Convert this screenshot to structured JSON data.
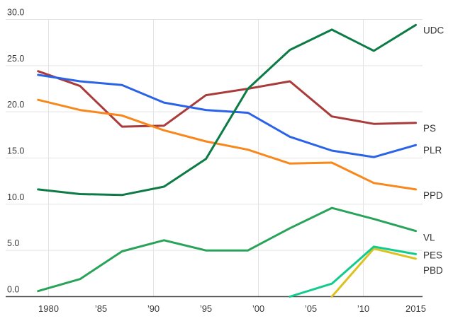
{
  "chart_data": {
    "type": "line",
    "title": "",
    "xlabel": "",
    "ylabel": "",
    "x": [
      1979,
      1983,
      1987,
      1991,
      1995,
      1999,
      2003,
      2007,
      2011,
      2015
    ],
    "x_ticks": [
      1980,
      1985,
      1990,
      1995,
      2000,
      2005,
      2010,
      2015
    ],
    "x_tick_labels": [
      "1980",
      "’85",
      "’90",
      "’95",
      "’00",
      "’05",
      "’10",
      "2015"
    ],
    "x_gridline_years": [
      1980,
      1990,
      2000,
      2010
    ],
    "y_ticks": [
      0,
      5,
      10,
      15,
      20,
      25,
      30
    ],
    "y_tick_labels": [
      "0.0",
      "5.0",
      "10.0",
      "15.0",
      "20.0",
      "25.0",
      "30.0"
    ],
    "ylim": [
      0,
      30
    ],
    "xlim": [
      1979,
      2015
    ],
    "grid": true,
    "legend_position": "right-edge-labels",
    "series": [
      {
        "name": "UDC",
        "color": "#0c7b45",
        "values": [
          11.6,
          11.1,
          11.0,
          11.9,
          14.9,
          22.5,
          26.7,
          28.9,
          26.6,
          29.4
        ],
        "label_dy": 12
      },
      {
        "name": "PS",
        "color": "#a93c3b",
        "values": [
          24.4,
          22.8,
          18.4,
          18.5,
          21.8,
          22.5,
          23.3,
          19.5,
          18.7,
          18.8
        ],
        "label_dy": 12
      },
      {
        "name": "PLR",
        "color": "#2b63e8",
        "values": [
          24.0,
          23.3,
          22.9,
          21.0,
          20.2,
          19.9,
          17.3,
          15.8,
          15.1,
          16.4
        ],
        "label_dy": 12
      },
      {
        "name": "PPD",
        "color": "#f8871c",
        "values": [
          21.3,
          20.2,
          19.6,
          18.0,
          16.8,
          15.9,
          14.4,
          14.5,
          12.3,
          11.6
        ],
        "label_dy": 13
      },
      {
        "name": "VL",
        "color": "#28a359",
        "values": [
          0.6,
          1.9,
          4.9,
          6.1,
          5.0,
          5.0,
          7.4,
          9.6,
          8.4,
          7.1
        ],
        "label_dy": 14
      },
      {
        "name": "PES",
        "color": "#13cb8e",
        "values": [
          null,
          null,
          null,
          null,
          null,
          null,
          0.0,
          1.4,
          5.4,
          4.6
        ],
        "label_dy": 6
      },
      {
        "name": "PBD",
        "color": "#dcc11f",
        "values": [
          null,
          null,
          null,
          null,
          null,
          null,
          null,
          0.0,
          5.2,
          4.1
        ],
        "label_dy": 21
      }
    ],
    "draw_order": [
      "PS",
      "PPD",
      "PLR",
      "VL",
      "UDC",
      "PBD",
      "PES"
    ],
    "colors": {
      "gridline": "#e3e3e3",
      "zero_axis": "#4c4c4c",
      "tick_label": "#3b3b3b",
      "series_label": "#333333",
      "background": "#ffffff"
    }
  }
}
